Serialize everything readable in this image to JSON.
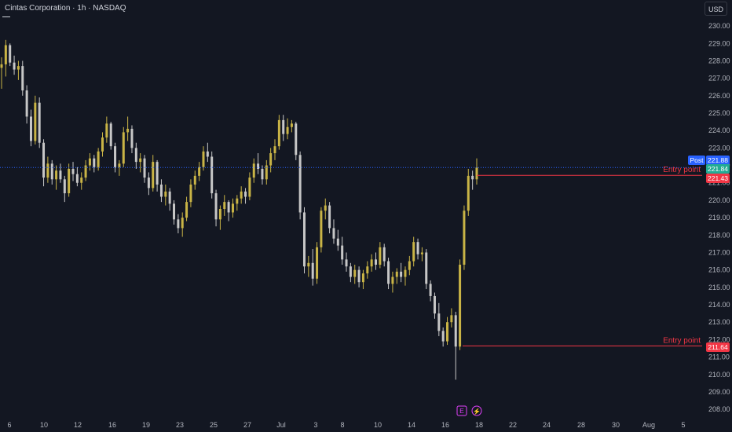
{
  "header": {
    "title": "Cintas Corporation · 1h · NASDAQ",
    "currency_button": "USD"
  },
  "colors": {
    "background": "#131722",
    "bull": "#c9b446",
    "bear": "#c7c7c7",
    "entry_line": "#f23645",
    "current_price_line": "#2962ff",
    "post_tag": "#2962ff",
    "green_tag": "#22ab94",
    "red_tag": "#f23645"
  },
  "price_axis": {
    "labels": [
      "230.00",
      "229.00",
      "228.00",
      "227.00",
      "226.00",
      "225.00",
      "224.00",
      "223.00",
      "222.00",
      "221.00",
      "220.00",
      "219.00",
      "218.00",
      "217.00",
      "216.00",
      "215.00",
      "214.00",
      "213.00",
      "212.00",
      "211.00",
      "210.00",
      "209.00",
      "208.00"
    ],
    "tags": [
      {
        "text": "Post",
        "value": "221.88",
        "color": "#2962ff"
      },
      {
        "text": "",
        "value": "221.84",
        "color": "#22ab94"
      },
      {
        "text": "",
        "value": "221.43",
        "color": "#f23645"
      },
      {
        "text": "",
        "value": "211.64",
        "color": "#f23645"
      }
    ]
  },
  "time_axis": {
    "labels": [
      "6",
      "10",
      "12",
      "16",
      "19",
      "23",
      "25",
      "27",
      "Jul",
      "3",
      "8",
      "10",
      "14",
      "16",
      "18",
      "22",
      "24",
      "28",
      "30",
      "Aug",
      "5"
    ]
  },
  "event_markers": {
    "earnings_icon": "E",
    "dividend_icon": "⚡"
  },
  "annotations": [
    {
      "text": "Entry point",
      "price": 221.43
    },
    {
      "text": "Entry point",
      "price": 211.64
    }
  ],
  "chart_data": {
    "type": "candlestick",
    "title": "Cintas Corporation · 1h · NASDAQ",
    "ylim": [
      207.6,
      230.5
    ],
    "current_price": 221.88,
    "x_range": [
      "Jun 6",
      "Aug 5"
    ],
    "series": [
      {
        "name": "",
        "ohlc": [
          [
            227.6,
            228.2,
            226.4,
            227.8
          ],
          [
            227.8,
            229.2,
            227.1,
            228.9
          ],
          [
            228.9,
            229.0,
            227.7,
            227.9
          ],
          [
            227.9,
            228.3,
            227.2,
            227.5
          ],
          [
            227.5,
            228.0,
            226.9,
            227.7
          ],
          [
            227.7,
            228.0,
            226.0,
            226.3
          ],
          [
            226.3,
            226.6,
            224.4,
            224.8
          ],
          [
            224.8,
            225.2,
            223.1,
            223.4
          ],
          [
            223.4,
            226.0,
            223.2,
            225.6
          ],
          [
            225.6,
            225.9,
            223.0,
            223.3
          ],
          [
            223.3,
            223.5,
            220.8,
            221.3
          ],
          [
            221.3,
            222.5,
            221.0,
            222.1
          ],
          [
            222.1,
            222.3,
            220.9,
            221.2
          ],
          [
            221.2,
            222.0,
            220.6,
            221.7
          ],
          [
            221.7,
            222.1,
            221.0,
            221.2
          ],
          [
            221.2,
            221.4,
            219.9,
            220.4
          ],
          [
            220.4,
            222.1,
            220.2,
            221.8
          ],
          [
            221.8,
            222.2,
            221.1,
            221.5
          ],
          [
            221.5,
            221.9,
            220.8,
            221.0
          ],
          [
            221.0,
            221.6,
            220.6,
            221.3
          ],
          [
            221.3,
            222.3,
            221.1,
            222.0
          ],
          [
            222.0,
            222.7,
            221.7,
            222.4
          ],
          [
            222.4,
            222.6,
            221.6,
            221.9
          ],
          [
            221.9,
            223.0,
            221.7,
            222.8
          ],
          [
            222.8,
            223.9,
            222.5,
            223.6
          ],
          [
            223.6,
            224.8,
            223.3,
            224.4
          ],
          [
            224.4,
            224.5,
            222.9,
            223.1
          ],
          [
            223.1,
            223.3,
            221.6,
            221.9
          ],
          [
            221.9,
            222.3,
            221.4,
            222.1
          ],
          [
            222.1,
            224.2,
            221.9,
            223.9
          ],
          [
            223.9,
            224.8,
            223.4,
            224.1
          ],
          [
            224.1,
            224.3,
            222.7,
            223.0
          ],
          [
            223.0,
            223.3,
            221.8,
            222.2
          ],
          [
            222.2,
            222.7,
            221.6,
            222.4
          ],
          [
            222.4,
            222.6,
            221.0,
            221.3
          ],
          [
            221.3,
            221.6,
            220.3,
            220.7
          ],
          [
            220.7,
            222.6,
            220.5,
            222.2
          ],
          [
            222.2,
            222.3,
            220.5,
            220.9
          ],
          [
            220.9,
            221.2,
            219.9,
            220.2
          ],
          [
            220.2,
            220.9,
            219.7,
            220.5
          ],
          [
            220.5,
            220.7,
            219.4,
            219.8
          ],
          [
            219.8,
            220.0,
            218.6,
            218.9
          ],
          [
            218.9,
            219.2,
            218.1,
            218.4
          ],
          [
            218.4,
            219.3,
            217.9,
            219.0
          ],
          [
            219.0,
            220.2,
            218.8,
            219.9
          ],
          [
            219.9,
            221.2,
            219.6,
            220.9
          ],
          [
            220.9,
            221.7,
            220.6,
            221.4
          ],
          [
            221.4,
            222.2,
            221.1,
            221.9
          ],
          [
            221.9,
            223.1,
            221.7,
            222.8
          ],
          [
            222.8,
            223.3,
            222.2,
            222.5
          ],
          [
            222.5,
            222.8,
            220.1,
            220.4
          ],
          [
            220.4,
            220.6,
            218.5,
            218.9
          ],
          [
            218.9,
            219.7,
            218.3,
            219.5
          ],
          [
            219.5,
            220.3,
            219.1,
            219.9
          ],
          [
            219.9,
            220.0,
            218.8,
            219.3
          ],
          [
            219.3,
            220.1,
            219.0,
            219.8
          ],
          [
            219.8,
            220.3,
            219.4,
            220.1
          ],
          [
            220.1,
            220.8,
            219.8,
            220.5
          ],
          [
            220.5,
            220.7,
            219.8,
            220.2
          ],
          [
            220.2,
            221.6,
            220.0,
            221.3
          ],
          [
            221.3,
            222.4,
            221.0,
            222.1
          ],
          [
            222.1,
            222.7,
            221.5,
            221.8
          ],
          [
            221.8,
            222.0,
            220.9,
            221.2
          ],
          [
            221.2,
            222.3,
            220.9,
            222.0
          ],
          [
            222.0,
            223.0,
            221.6,
            222.7
          ],
          [
            222.7,
            223.5,
            222.3,
            223.1
          ],
          [
            223.1,
            224.9,
            222.9,
            224.6
          ],
          [
            224.6,
            224.9,
            223.4,
            223.8
          ],
          [
            223.8,
            224.7,
            223.5,
            224.2
          ],
          [
            224.2,
            224.6,
            223.9,
            224.4
          ],
          [
            224.4,
            224.5,
            222.3,
            222.6
          ],
          [
            222.6,
            222.8,
            218.9,
            219.3
          ],
          [
            219.3,
            219.6,
            215.8,
            216.2
          ],
          [
            216.2,
            216.8,
            215.6,
            216.4
          ],
          [
            216.4,
            217.2,
            215.1,
            215.5
          ],
          [
            215.5,
            217.6,
            215.2,
            217.3
          ],
          [
            217.3,
            219.6,
            217.0,
            219.4
          ],
          [
            219.4,
            220.1,
            218.9,
            219.7
          ],
          [
            219.7,
            219.9,
            218.1,
            218.4
          ],
          [
            218.4,
            218.9,
            217.5,
            217.8
          ],
          [
            217.8,
            218.3,
            217.1,
            217.4
          ],
          [
            217.4,
            217.9,
            216.3,
            216.6
          ],
          [
            216.6,
            217.0,
            215.9,
            216.2
          ],
          [
            216.2,
            216.4,
            215.3,
            215.6
          ],
          [
            215.6,
            216.3,
            215.2,
            216.0
          ],
          [
            216.0,
            216.2,
            215.0,
            215.3
          ],
          [
            215.3,
            216.0,
            214.9,
            215.8
          ],
          [
            215.8,
            216.5,
            215.5,
            216.2
          ],
          [
            216.2,
            216.9,
            215.9,
            216.6
          ],
          [
            216.6,
            217.0,
            216.0,
            216.3
          ],
          [
            216.3,
            217.6,
            216.1,
            217.3
          ],
          [
            217.3,
            217.5,
            216.2,
            216.5
          ],
          [
            216.5,
            216.7,
            214.9,
            215.2
          ],
          [
            215.2,
            215.9,
            214.7,
            215.6
          ],
          [
            215.6,
            216.1,
            215.2,
            215.9
          ],
          [
            215.9,
            216.4,
            215.3,
            215.6
          ],
          [
            215.6,
            216.2,
            215.1,
            216.0
          ],
          [
            216.0,
            216.8,
            215.7,
            216.5
          ],
          [
            216.5,
            217.9,
            216.2,
            217.6
          ],
          [
            217.6,
            217.8,
            216.6,
            216.9
          ],
          [
            216.9,
            217.3,
            216.5,
            217.0
          ],
          [
            217.0,
            217.2,
            214.9,
            215.2
          ],
          [
            215.2,
            215.4,
            214.2,
            214.5
          ],
          [
            214.5,
            214.7,
            213.2,
            213.5
          ],
          [
            213.5,
            214.1,
            212.2,
            212.5
          ],
          [
            212.5,
            212.7,
            211.6,
            211.9
          ],
          [
            211.9,
            213.3,
            211.7,
            213.0
          ],
          [
            213.0,
            213.8,
            212.7,
            213.4
          ],
          [
            213.4,
            213.6,
            209.7,
            211.6
          ],
          [
            211.6,
            216.6,
            211.4,
            216.3
          ],
          [
            216.3,
            219.7,
            216.0,
            219.4
          ],
          [
            219.4,
            221.8,
            219.1,
            221.4
          ],
          [
            221.4,
            221.7,
            220.6,
            221.2
          ],
          [
            221.2,
            222.4,
            220.9,
            221.88
          ]
        ]
      }
    ],
    "annotations": [
      {
        "label": "Entry point",
        "price": 221.43
      },
      {
        "label": "Entry point",
        "price": 211.64
      }
    ]
  }
}
